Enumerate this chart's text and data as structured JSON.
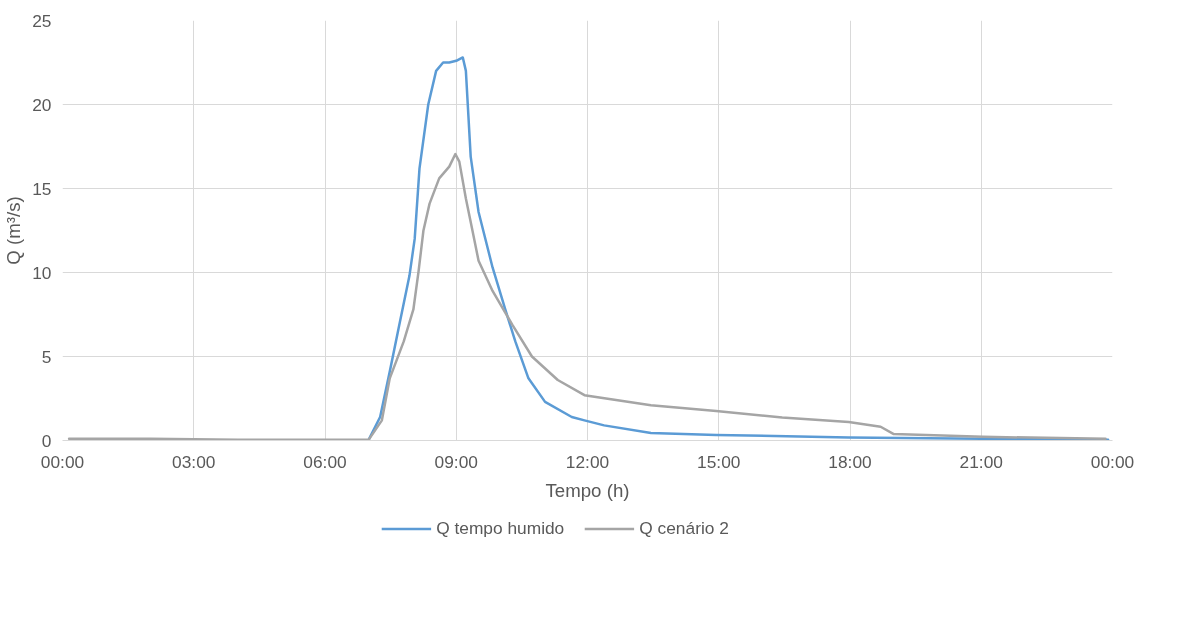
{
  "chart_data": {
    "type": "line",
    "xlabel": "Tempo (h)",
    "ylabel": "Q (m³/s)",
    "xlim": [
      0,
      24
    ],
    "ylim": [
      0,
      25
    ],
    "xticks": [
      {
        "value": 0,
        "label": "00:00"
      },
      {
        "value": 3,
        "label": "03:00"
      },
      {
        "value": 6,
        "label": "06:00"
      },
      {
        "value": 9,
        "label": "09:00"
      },
      {
        "value": 12,
        "label": "12:00"
      },
      {
        "value": 15,
        "label": "15:00"
      },
      {
        "value": 18,
        "label": "18:00"
      },
      {
        "value": 21,
        "label": "21:00"
      },
      {
        "value": 24,
        "label": "00:00"
      }
    ],
    "yticks": [
      0,
      5,
      10,
      15,
      20,
      25
    ],
    "grid": true,
    "legend": "bottom",
    "marker": "none",
    "line_style": "solid",
    "series": [
      {
        "name": "Q tempo humido",
        "color": "#5b9bd5",
        "x": [
          7.0,
          7.26,
          7.48,
          7.7,
          7.93,
          8.05,
          8.16,
          8.36,
          8.54,
          8.7,
          8.84,
          9.0,
          9.15,
          9.22,
          9.33,
          9.51,
          9.83,
          10.12,
          10.35,
          10.65,
          11.03,
          11.64,
          11.93,
          12.38,
          13.45,
          14.94,
          17.97,
          21,
          23.9
        ],
        "values": [
          0.05,
          1.4,
          4.1,
          6.9,
          9.8,
          12.0,
          16.2,
          20.0,
          22.0,
          22.5,
          22.5,
          22.6,
          22.8,
          22.0,
          16.9,
          13.6,
          10.3,
          7.8,
          5.9,
          3.7,
          2.3,
          1.4,
          1.2,
          0.9,
          0.45,
          0.33,
          0.18,
          0.1,
          0.05
        ]
      },
      {
        "name": "Q cenário 2",
        "color": "#a5a5a5",
        "x": [
          0.15,
          2,
          4,
          6,
          7.0,
          7.3,
          7.48,
          7.8,
          8.02,
          8.14,
          8.25,
          8.39,
          8.61,
          8.84,
          8.98,
          9.07,
          9.22,
          9.37,
          9.51,
          9.83,
          10.28,
          10.73,
          11.32,
          11.93,
          13.45,
          14.94,
          16.45,
          17.97,
          18.7,
          19.0,
          21.04,
          23.84
        ],
        "values": [
          0.1,
          0.1,
          0.05,
          0.05,
          0.05,
          1.2,
          3.7,
          5.9,
          7.8,
          10.1,
          12.5,
          14.1,
          15.6,
          16.3,
          17.05,
          16.6,
          14.4,
          12.5,
          10.7,
          8.9,
          6.9,
          5.0,
          3.6,
          2.7,
          2.1,
          1.75,
          1.37,
          1.1,
          0.82,
          0.38,
          0.22,
          0.1
        ]
      }
    ]
  }
}
